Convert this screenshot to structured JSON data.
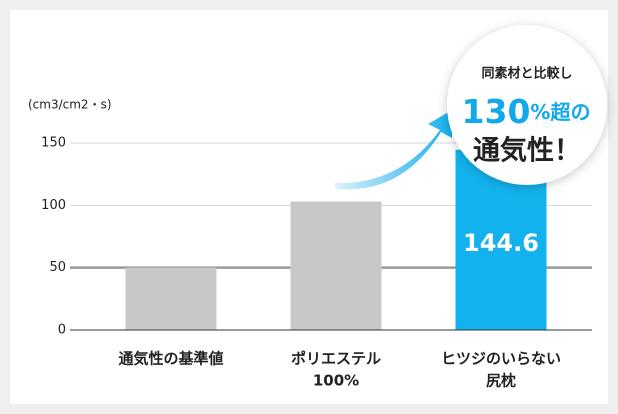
{
  "chart_data": {
    "type": "bar",
    "y_label": "(cm3/cm2・s)",
    "categories": [
      [
        "通気性の基準値"
      ],
      [
        "ポリエステル",
        "100%"
      ],
      [
        "ヒツジのいらない",
        "尻枕"
      ]
    ],
    "values": [
      50,
      103,
      144.6
    ],
    "colors": [
      "#c8c8c8",
      "#c8c8c8",
      "#12b2ee"
    ],
    "ylim": [
      0,
      150
    ],
    "yticks": [
      0,
      50,
      100,
      150
    ],
    "grid": true,
    "annotation": [
      "同素材と比較し",
      "130",
      "%超の",
      "通気性！"
    ]
  }
}
